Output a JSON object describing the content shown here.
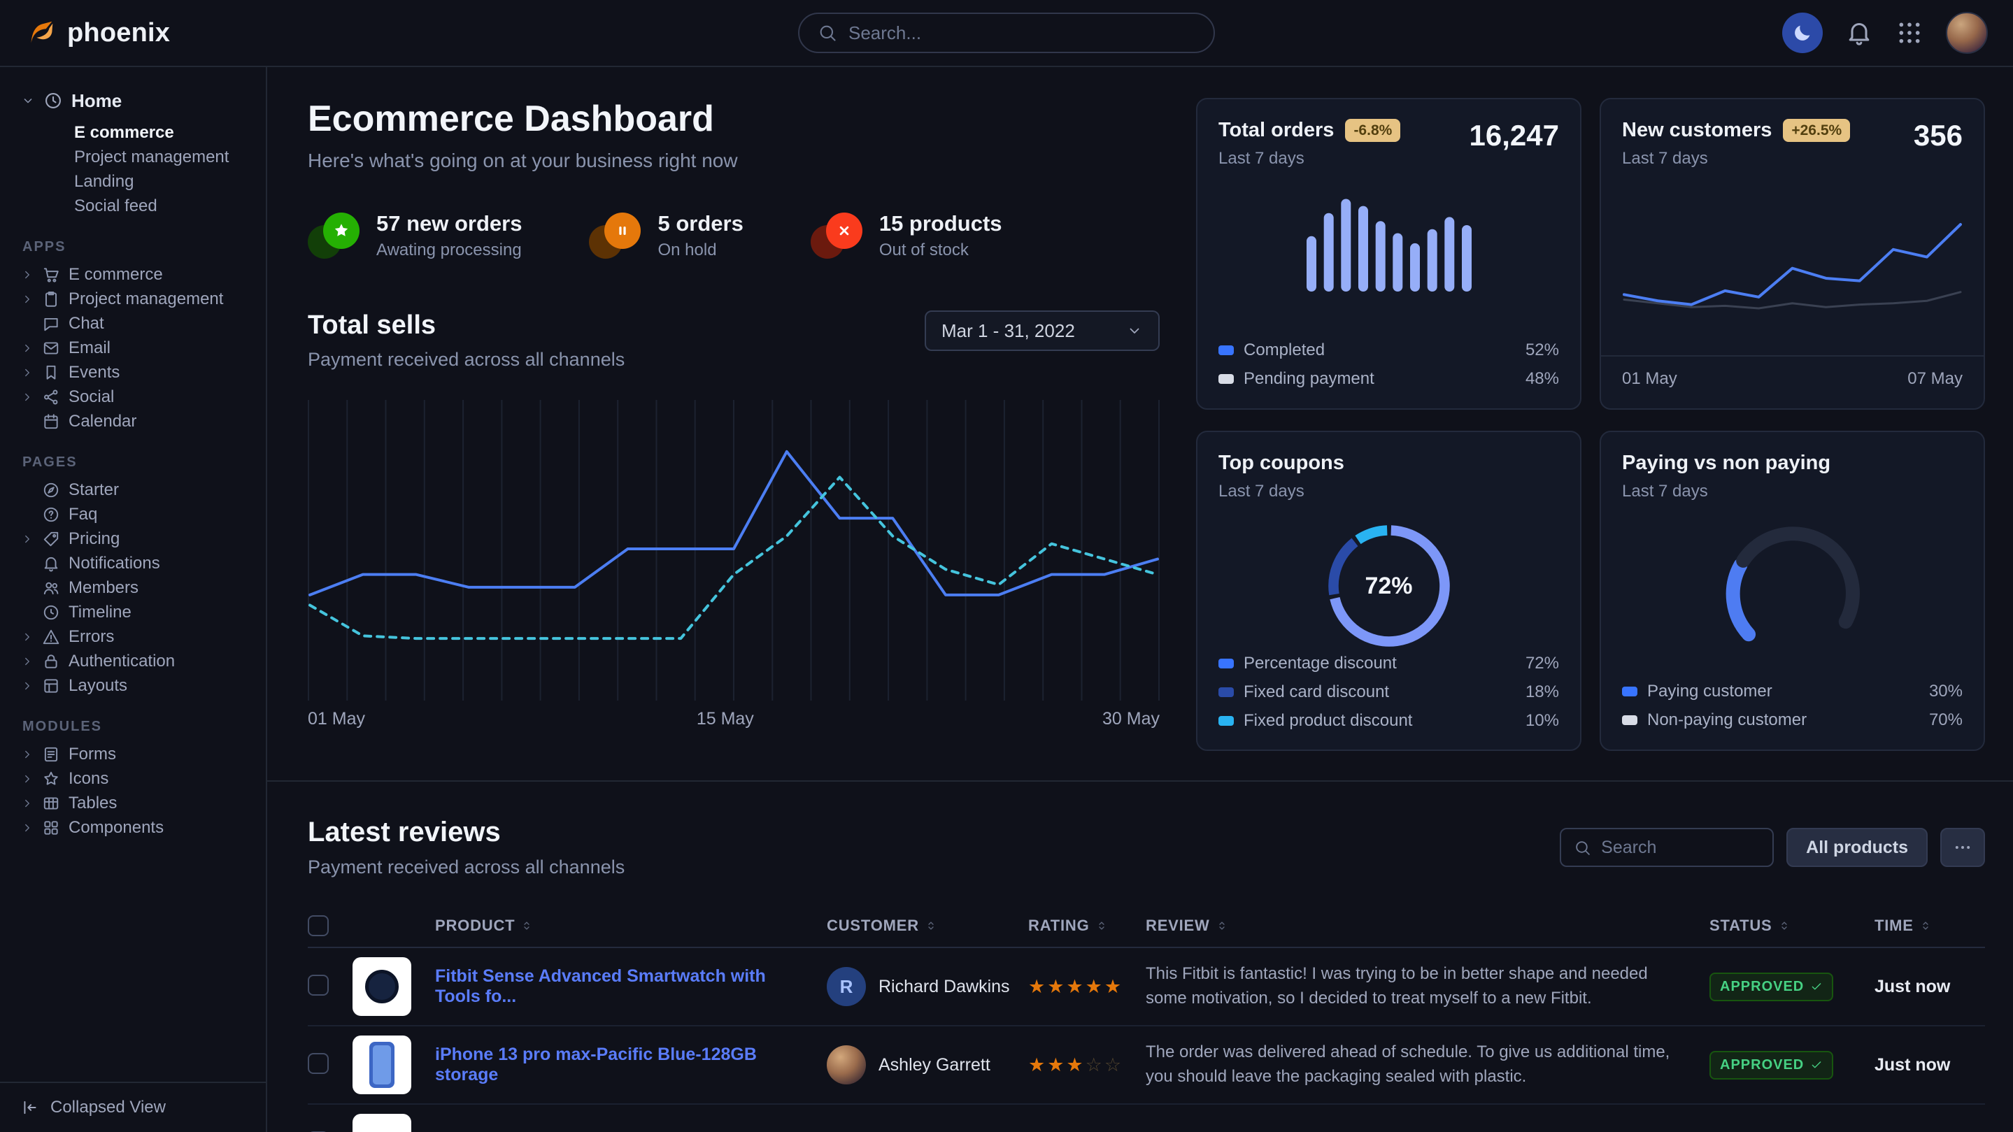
{
  "brand": "phoenix",
  "topbar": {
    "search_placeholder": "Search..."
  },
  "colors": {
    "primary": "#3874ff",
    "success": "#25b003",
    "warning": "#e5780b",
    "danger": "#fa3b1d",
    "background": "#0f111a",
    "card": "#131826",
    "border": "#222834",
    "text_muted": "#9fa6bc",
    "badge_bg": "#e6c383",
    "line_current": "#4c7ef3",
    "line_previous": "#45c4dd",
    "bars": "#96aef8"
  },
  "sidebar": {
    "home": {
      "label": "Home",
      "icon": "clock-icon",
      "children": [
        "E commerce",
        "Project management",
        "Landing",
        "Social feed"
      ],
      "active_child": "E commerce"
    },
    "sections": [
      {
        "title": "APPS",
        "items": [
          {
            "label": "E commerce",
            "icon": "cart-icon",
            "caret": true
          },
          {
            "label": "Project management",
            "icon": "clipboard-icon",
            "caret": true
          },
          {
            "label": "Chat",
            "icon": "chat-icon",
            "caret": false
          },
          {
            "label": "Email",
            "icon": "mail-icon",
            "caret": true
          },
          {
            "label": "Events",
            "icon": "bookmark-icon",
            "caret": true
          },
          {
            "label": "Social",
            "icon": "share-icon",
            "caret": true
          },
          {
            "label": "Calendar",
            "icon": "calendar-icon",
            "caret": false
          }
        ]
      },
      {
        "title": "PAGES",
        "items": [
          {
            "label": "Starter",
            "icon": "compass-icon",
            "caret": false
          },
          {
            "label": "Faq",
            "icon": "faq-icon",
            "caret": false
          },
          {
            "label": "Pricing",
            "icon": "tag-icon",
            "caret": true
          },
          {
            "label": "Notifications",
            "icon": "bell-icon",
            "caret": false
          },
          {
            "label": "Members",
            "icon": "users-icon",
            "caret": false
          },
          {
            "label": "Timeline",
            "icon": "timeline-icon",
            "caret": false
          },
          {
            "label": "Errors",
            "icon": "warning-icon",
            "caret": true
          },
          {
            "label": "Authentication",
            "icon": "lock-icon",
            "caret": true
          },
          {
            "label": "Layouts",
            "icon": "layout-icon",
            "caret": true
          }
        ]
      },
      {
        "title": "MODULES",
        "items": [
          {
            "label": "Forms",
            "icon": "form-icon",
            "caret": true
          },
          {
            "label": "Icons",
            "icon": "star-icon",
            "caret": true
          },
          {
            "label": "Tables",
            "icon": "table-icon",
            "caret": true
          },
          {
            "label": "Components",
            "icon": "components-icon",
            "caret": true
          }
        ]
      }
    ],
    "collapsed_view": "Collapsed View"
  },
  "header": {
    "title": "Ecommerce Dashboard",
    "subtitle": "Here's what's going on at your business right now"
  },
  "stats": [
    {
      "value": "57 new orders",
      "desc": "Awating processing",
      "icon": "star-badge-icon",
      "glyph": "star-fill",
      "color": "#25b003",
      "color_dark": "#123f08"
    },
    {
      "value": "5 orders",
      "desc": "On hold",
      "icon": "pause-badge-icon",
      "glyph": "pause",
      "color": "#e5780b",
      "color_dark": "#5d3204"
    },
    {
      "value": "15 products",
      "desc": "Out of stock",
      "icon": "cancel-badge-icon",
      "glyph": "x-mark",
      "color": "#fa3b1d",
      "color_dark": "#6b1a0e"
    }
  ],
  "chart_data": [
    {
      "id": "total_sells",
      "type": "line",
      "title": "Total sells",
      "subtitle": "Payment received across all channels",
      "date_range": "Mar 1 - 31, 2022",
      "x_ticks": [
        "01 May",
        "15 May",
        "30 May"
      ],
      "grid": true,
      "series": [
        {
          "name": "current",
          "style": "solid",
          "color": "#4c7ef3",
          "values": [
            32,
            40,
            40,
            35,
            35,
            35,
            50,
            50,
            50,
            88,
            62,
            62,
            32,
            32,
            40,
            40,
            46
          ]
        },
        {
          "name": "previous",
          "style": "dashed",
          "color": "#45c4dd",
          "values": [
            28,
            16,
            15,
            15,
            15,
            15,
            15,
            15,
            40,
            55,
            78,
            55,
            42,
            36,
            52,
            46,
            40
          ]
        }
      ]
    },
    {
      "id": "total_orders",
      "type": "bar",
      "title": "Total orders",
      "badge": "-6.8%",
      "period": "Last 7 days",
      "value": "16,247",
      "bar_color": "#96aef8",
      "values": [
        55,
        78,
        92,
        85,
        70,
        58,
        48,
        62,
        74,
        66
      ],
      "legend": [
        {
          "label": "Completed",
          "value": "52%",
          "color": "#3874ff"
        },
        {
          "label": "Pending payment",
          "value": "48%",
          "color": "#d8dce6"
        }
      ]
    },
    {
      "id": "new_customers",
      "type": "line",
      "title": "New customers",
      "badge": "+26.5%",
      "period": "Last 7 days",
      "value": "356",
      "x_ticks": [
        "01 May",
        "07 May"
      ],
      "series": [
        {
          "name": "previous",
          "style": "solid",
          "color": "#3a4152",
          "width": 3,
          "values": [
            30,
            27,
            24,
            25,
            23,
            27,
            24,
            26,
            27,
            29,
            36
          ]
        },
        {
          "name": "current",
          "style": "solid",
          "color": "#4c7ef3",
          "width": 4,
          "values": [
            34,
            29,
            26,
            37,
            32,
            55,
            47,
            45,
            70,
            64,
            90
          ]
        }
      ]
    },
    {
      "id": "top_coupons",
      "type": "donut",
      "title": "Top coupons",
      "period": "Last 7 days",
      "center": "72%",
      "slices": [
        {
          "label": "Percentage discount",
          "value": 72,
          "display": "72%",
          "color": "#3874ff",
          "arc": "#7d97f8"
        },
        {
          "label": "Fixed card discount",
          "value": 18,
          "display": "18%",
          "color": "#2a4ba8",
          "arc": "#2a4ba8"
        },
        {
          "label": "Fixed product discount",
          "value": 10,
          "display": "10%",
          "color": "#29b3f2",
          "arc": "#29b3f2"
        }
      ]
    },
    {
      "id": "paying_vs_non_paying",
      "type": "gauge",
      "title": "Paying vs non paying",
      "period": "Last 7 days",
      "slices": [
        {
          "label": "Paying customer",
          "value": 30,
          "display": "30%",
          "color": "#3874ff",
          "arc": "#4e7cf2"
        },
        {
          "label": "Non-paying customer",
          "value": 70,
          "display": "70%",
          "color": "#d8dce6",
          "arc": "#232a3c"
        }
      ]
    }
  ],
  "reviews": {
    "title": "Latest reviews",
    "subtitle": "Payment received across all channels",
    "search_placeholder": "Search",
    "filter_button": "All products",
    "more_button": "dots-icon",
    "columns": [
      "PRODUCT",
      "CUSTOMER",
      "RATING",
      "REVIEW",
      "STATUS",
      "TIME"
    ],
    "rows": [
      {
        "product": "Fitbit Sense Advanced Smartwatch with Tools fo...",
        "thumb": "watch",
        "customer": "Richard Dawkins",
        "avatar_type": "initial",
        "avatar_initial": "R",
        "rating": 5,
        "review": "This Fitbit is fantastic! I was trying to be in better shape and needed some motivation, so I decided to treat myself to a new Fitbit.",
        "status": "APPROVED",
        "time": "Just now"
      },
      {
        "product": "iPhone 13 pro max-Pacific Blue-128GB storage",
        "thumb": "phone",
        "customer": "Ashley Garrett",
        "avatar_type": "photo",
        "avatar_initial": "",
        "rating": 3,
        "review": "The order was delivered ahead of schedule. To give us additional time, you should leave the packaging sealed with plastic.",
        "status": "APPROVED",
        "time": "Just now"
      },
      {
        "product": "",
        "thumb": "generic",
        "customer": "",
        "avatar_type": "",
        "avatar_initial": "",
        "rating": 0,
        "review": "",
        "status": "",
        "time": ""
      }
    ]
  }
}
